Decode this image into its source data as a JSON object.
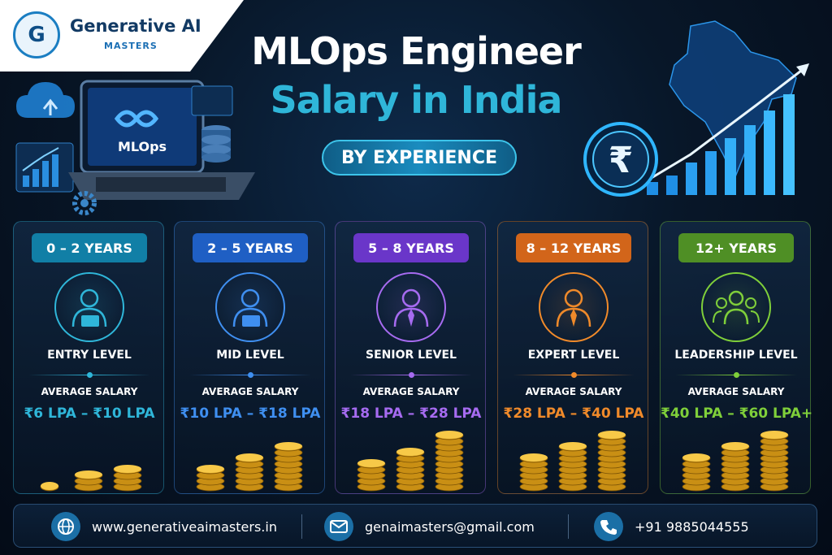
{
  "brand": {
    "logo_letter": "G",
    "name": "Generative AI",
    "sub": "MASTERS"
  },
  "header": {
    "title_line1": "MLOps Engineer",
    "title_line2": "Salary in India",
    "subtitle": "BY EXPERIENCE"
  },
  "illustration": {
    "laptop_label": "MLOps",
    "currency_symbol": "₹"
  },
  "levels": [
    {
      "years": "0 – 2 YEARS",
      "level": "ENTRY LEVEL",
      "avg_label": "AVERAGE SALARY",
      "range": "₹6 LPA – ₹10 LPA",
      "color": "#2fb6d9",
      "badge_color": "#117fa6",
      "icon": "person-laptop-icon"
    },
    {
      "years": "2 – 5 YEARS",
      "level": "MID LEVEL",
      "avg_label": "AVERAGE SALARY",
      "range": "₹10 LPA – ₹18 LPA",
      "color": "#3f8ff0",
      "badge_color": "#1f5fc4",
      "icon": "person-glasses-laptop-icon"
    },
    {
      "years": "5 – 8 YEARS",
      "level": "SENIOR LEVEL",
      "avg_label": "AVERAGE SALARY",
      "range": "₹18 LPA – ₹28 LPA",
      "color": "#a66bf0",
      "badge_color": "#6a36c9",
      "icon": "person-suit-icon"
    },
    {
      "years": "8 – 12 YEARS",
      "level": "EXPERT LEVEL",
      "avg_label": "AVERAGE SALARY",
      "range": "₹28 LPA – ₹40 LPA",
      "color": "#f08a2a",
      "badge_color": "#d2651a",
      "icon": "person-tie-icon"
    },
    {
      "years": "12+ YEARS",
      "level": "LEADERSHIP LEVEL",
      "avg_label": "AVERAGE SALARY",
      "range": "₹40 LPA – ₹60 LPA+",
      "color": "#7fcf3a",
      "badge_color": "#4f8f25",
      "icon": "team-icon"
    }
  ],
  "footer": {
    "website": "www.generativeaimasters.in",
    "email": "genaimasters@gmail.com",
    "phone": "+91 9885044555"
  }
}
